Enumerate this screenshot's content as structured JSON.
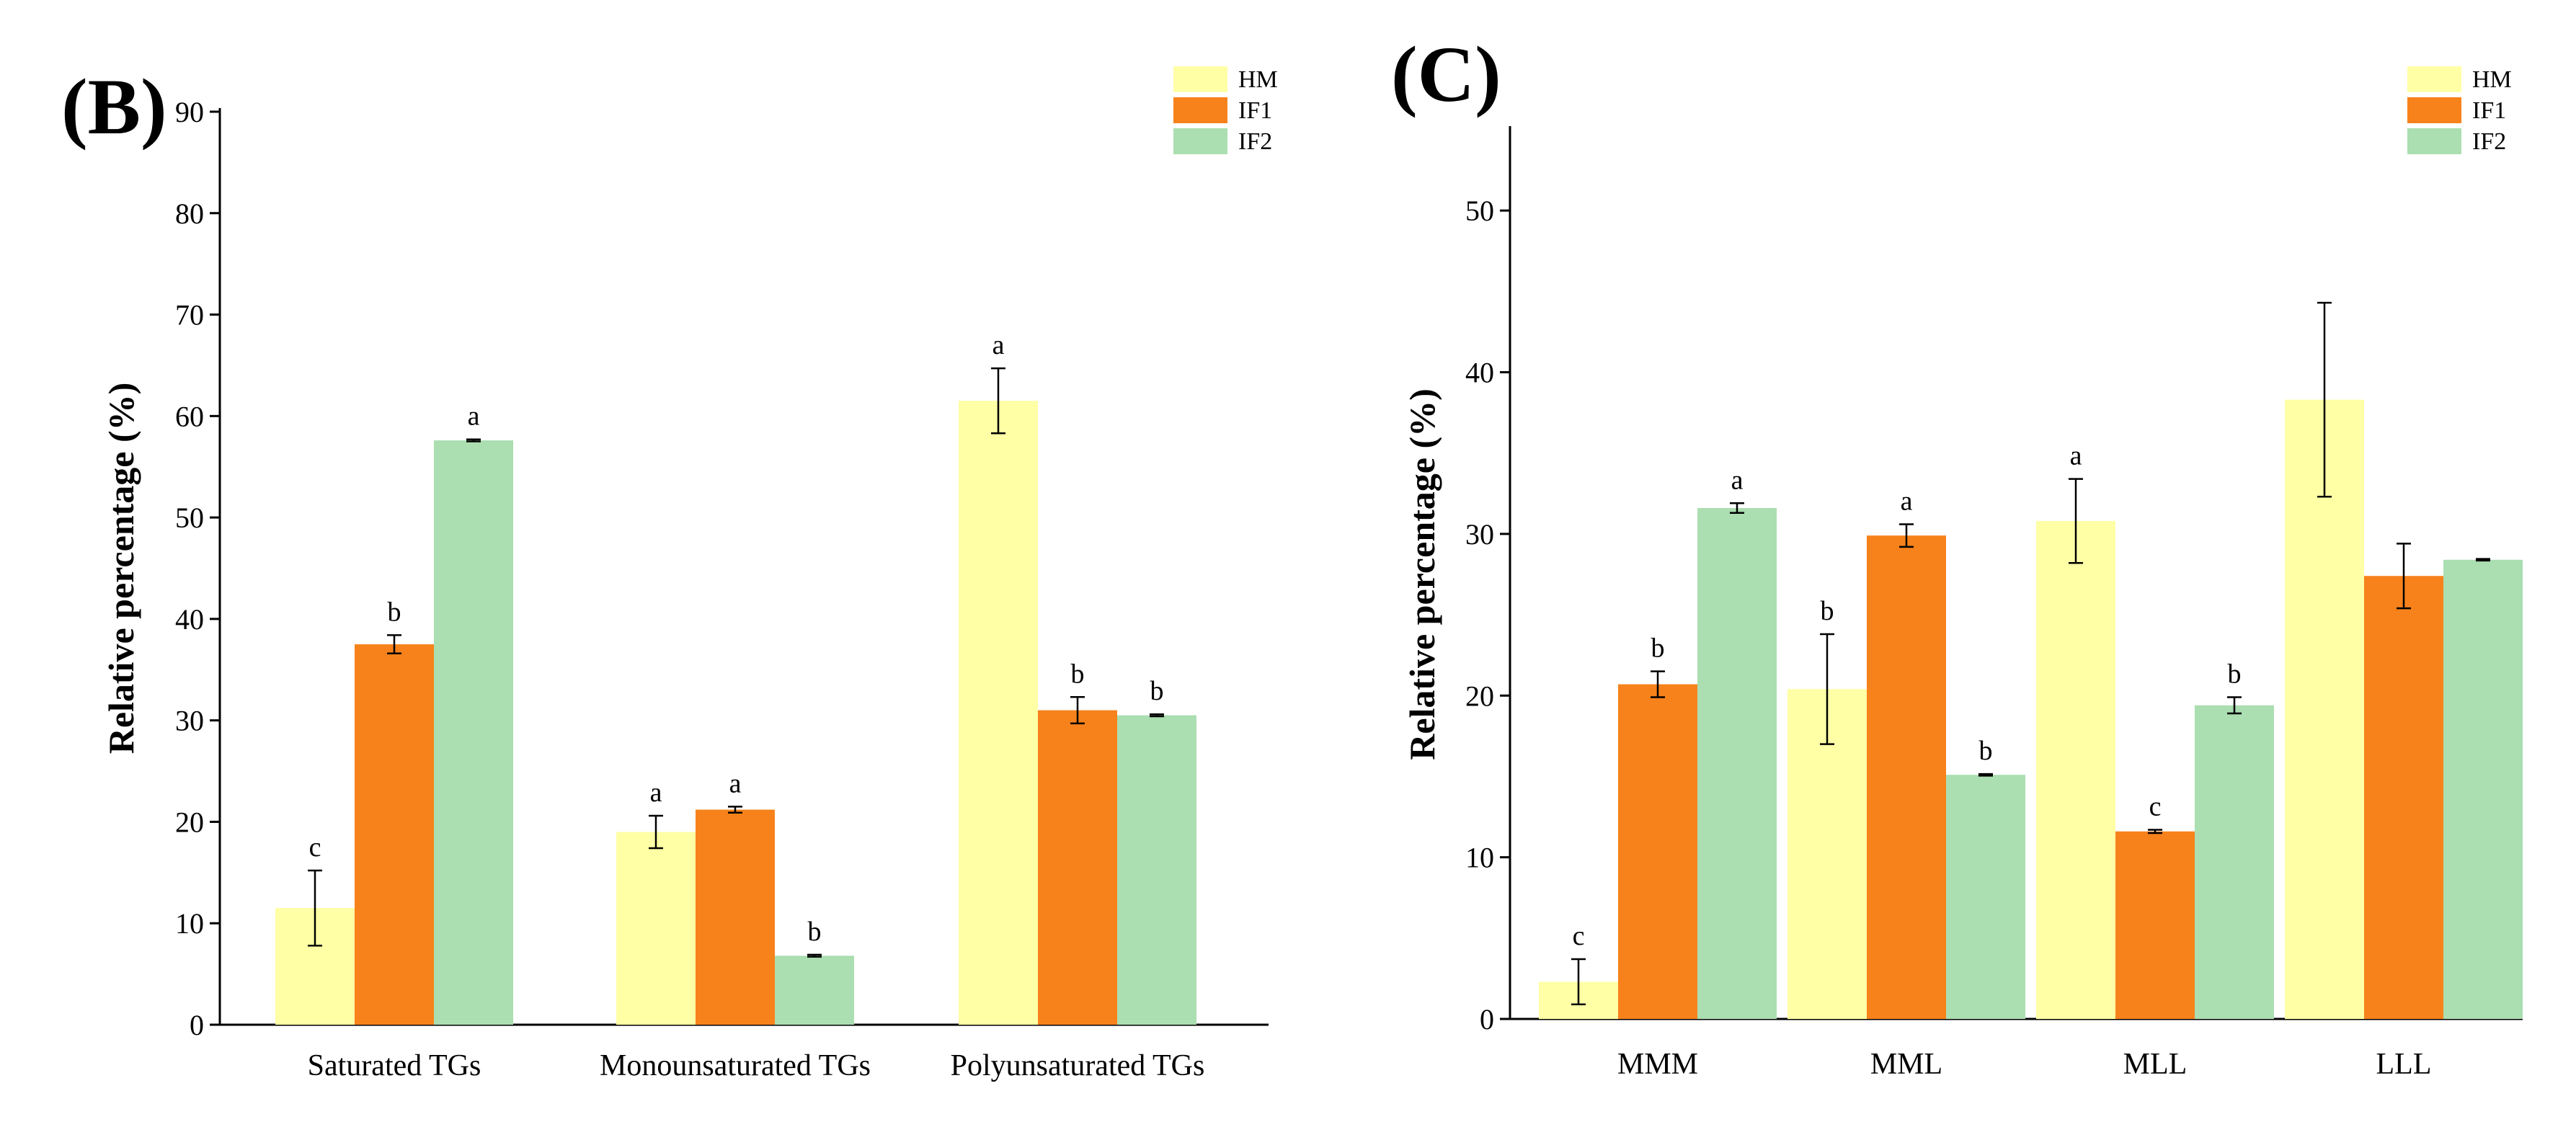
{
  "chart_data": [
    {
      "panel": "(B)",
      "type": "bar",
      "ylabel": "Relative percentage (%)",
      "xlabel": "",
      "ylim": [
        0,
        90
      ],
      "yticks": [
        0,
        10,
        20,
        30,
        40,
        50,
        60,
        70,
        80,
        90
      ],
      "legend_position": "top-right",
      "categories": [
        "Saturated TGs",
        "Monounsaturated TGs",
        "Polyunsaturated TGs"
      ],
      "series": [
        {
          "name": "HM",
          "color": "#FFFFA6",
          "values": [
            11.5,
            19.0,
            61.5
          ],
          "errors": [
            3.7,
            1.6,
            3.2
          ],
          "letters": [
            "c",
            "a",
            "a"
          ]
        },
        {
          "name": "IF1",
          "color": "#F7821B",
          "values": [
            37.5,
            21.2,
            31.0
          ],
          "errors": [
            0.9,
            0.3,
            1.3
          ],
          "letters": [
            "b",
            "a",
            "b"
          ]
        },
        {
          "name": "IF2",
          "color": "#ABDEB1",
          "values": [
            57.6,
            6.8,
            30.5
          ],
          "errors": [
            0.1,
            0.1,
            0.1
          ],
          "letters": [
            "a",
            "b",
            "b"
          ]
        }
      ]
    },
    {
      "panel": "(C)",
      "type": "bar",
      "ylabel": "Relative percentage (%)",
      "xlabel": "",
      "ylim": [
        0,
        55
      ],
      "yticks": [
        0,
        10,
        20,
        30,
        40,
        50
      ],
      "legend_position": "top-right",
      "categories": [
        "MMM",
        "MML",
        "MLL",
        "LLL"
      ],
      "series": [
        {
          "name": "HM",
          "color": "#FFFFA6",
          "values": [
            2.3,
            20.4,
            30.8,
            38.3
          ],
          "errors": [
            1.4,
            3.4,
            2.6,
            6.0
          ],
          "letters": [
            "c",
            "b",
            "a",
            ""
          ]
        },
        {
          "name": "IF1",
          "color": "#F7821B",
          "values": [
            20.7,
            29.9,
            11.6,
            27.4
          ],
          "errors": [
            0.8,
            0.7,
            0.1,
            2.0
          ],
          "letters": [
            "b",
            "a",
            "c",
            ""
          ]
        },
        {
          "name": "IF2",
          "color": "#ABDEB1",
          "values": [
            31.6,
            15.1,
            19.4,
            28.4
          ],
          "errors": [
            0.3,
            0.05,
            0.5,
            0.05
          ],
          "letters": [
            "a",
            "b",
            "b",
            ""
          ]
        }
      ]
    }
  ]
}
